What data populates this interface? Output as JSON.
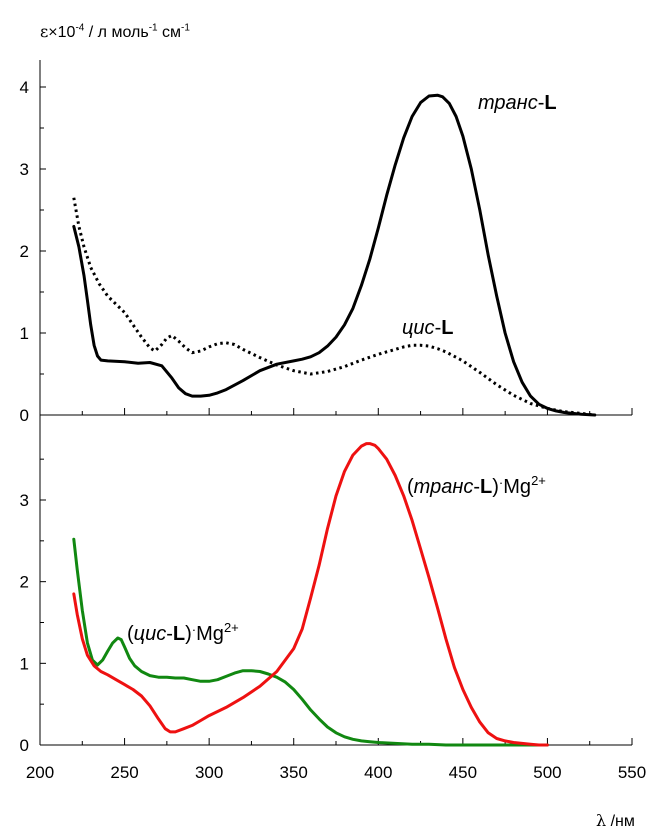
{
  "chart_data": [
    {
      "type": "line",
      "panel": "top",
      "ylim": [
        0,
        4.1
      ],
      "xlim": [
        200,
        550
      ],
      "yticks": [
        "0",
        "1",
        "2",
        "3",
        "4"
      ],
      "ylabel": "ε×10⁻⁴ / л моль⁻¹ см⁻¹",
      "grid": false,
      "series": [
        {
          "name": "транс-L",
          "name_prefix": "транс",
          "name_suffix": "-L",
          "color": "#000000",
          "style": "solid",
          "x": [
            220,
            223,
            226,
            228,
            230,
            232,
            234,
            236,
            240,
            250,
            258,
            265,
            272,
            278,
            282,
            286,
            290,
            295,
            300,
            305,
            310,
            320,
            330,
            340,
            350,
            355,
            360,
            365,
            370,
            375,
            380,
            385,
            390,
            395,
            400,
            405,
            410,
            415,
            420,
            425,
            430,
            435,
            438,
            442,
            446,
            450,
            455,
            460,
            465,
            470,
            475,
            480,
            485,
            490,
            495,
            500,
            505,
            510,
            515,
            520,
            528
          ],
          "values": [
            2.3,
            2.05,
            1.7,
            1.4,
            1.1,
            0.85,
            0.72,
            0.67,
            0.66,
            0.65,
            0.63,
            0.64,
            0.6,
            0.45,
            0.33,
            0.26,
            0.23,
            0.23,
            0.24,
            0.27,
            0.31,
            0.42,
            0.54,
            0.62,
            0.66,
            0.68,
            0.71,
            0.76,
            0.84,
            0.95,
            1.1,
            1.3,
            1.58,
            1.9,
            2.28,
            2.68,
            3.05,
            3.38,
            3.64,
            3.81,
            3.89,
            3.9,
            3.88,
            3.8,
            3.64,
            3.4,
            3.0,
            2.5,
            1.95,
            1.45,
            1.0,
            0.65,
            0.4,
            0.23,
            0.13,
            0.08,
            0.05,
            0.03,
            0.02,
            0.01,
            0.0
          ]
        },
        {
          "name": "цис-L",
          "name_prefix": "цис",
          "name_suffix": "-L",
          "color": "#000000",
          "style": "dotted",
          "x": [
            220,
            223,
            226,
            230,
            235,
            240,
            245,
            250,
            255,
            260,
            265,
            268,
            272,
            275,
            278,
            282,
            286,
            290,
            295,
            300,
            305,
            310,
            315,
            320,
            330,
            340,
            350,
            360,
            370,
            380,
            390,
            400,
            410,
            415,
            420,
            425,
            430,
            435,
            440,
            450,
            460,
            470,
            480,
            490,
            500,
            505,
            510,
            515,
            520,
            528
          ],
          "values": [
            2.65,
            2.3,
            2.05,
            1.8,
            1.6,
            1.45,
            1.35,
            1.25,
            1.1,
            0.95,
            0.82,
            0.78,
            0.86,
            0.94,
            0.97,
            0.9,
            0.82,
            0.76,
            0.78,
            0.83,
            0.87,
            0.88,
            0.86,
            0.8,
            0.7,
            0.61,
            0.54,
            0.5,
            0.53,
            0.59,
            0.67,
            0.74,
            0.8,
            0.83,
            0.85,
            0.85,
            0.84,
            0.81,
            0.77,
            0.66,
            0.52,
            0.37,
            0.24,
            0.14,
            0.08,
            0.06,
            0.04,
            0.03,
            0.02,
            0.0
          ]
        }
      ]
    },
    {
      "type": "line",
      "panel": "bottom",
      "ylim": [
        0,
        4.1
      ],
      "xlim": [
        200,
        550
      ],
      "yticks": [
        "0",
        "1",
        "2",
        "3"
      ],
      "xticks": [
        "200",
        "250",
        "300",
        "350",
        "400",
        "450",
        "500",
        "550"
      ],
      "xlabel": "λ /нм",
      "grid": false,
      "series": [
        {
          "name": "(транс-L)·Mg²⁺",
          "name_prefix": "транс",
          "name_suffix": "-L",
          "ion": "Mg",
          "charge": "2+",
          "color": "#ee1111",
          "style": "solid",
          "x": [
            220,
            222,
            225,
            228,
            232,
            236,
            240,
            245,
            250,
            255,
            260,
            265,
            270,
            274,
            277,
            280,
            285,
            290,
            295,
            300,
            310,
            320,
            330,
            340,
            350,
            355,
            360,
            365,
            370,
            375,
            380,
            385,
            390,
            393,
            395,
            398,
            400,
            405,
            410,
            415,
            420,
            425,
            430,
            435,
            440,
            445,
            450,
            455,
            460,
            465,
            470,
            475,
            480,
            485,
            490,
            495,
            500
          ],
          "values": [
            1.85,
            1.6,
            1.3,
            1.1,
            0.97,
            0.9,
            0.86,
            0.8,
            0.74,
            0.68,
            0.6,
            0.48,
            0.32,
            0.2,
            0.16,
            0.16,
            0.2,
            0.24,
            0.3,
            0.36,
            0.46,
            0.58,
            0.72,
            0.9,
            1.18,
            1.42,
            1.8,
            2.2,
            2.65,
            3.05,
            3.35,
            3.55,
            3.66,
            3.69,
            3.69,
            3.67,
            3.63,
            3.5,
            3.3,
            3.05,
            2.75,
            2.4,
            2.05,
            1.68,
            1.3,
            0.95,
            0.68,
            0.46,
            0.28,
            0.15,
            0.08,
            0.05,
            0.03,
            0.02,
            0.01,
            0.0,
            0.0
          ]
        },
        {
          "name": "(цис-L)·Mg²⁺",
          "name_prefix": "цис",
          "name_suffix": "-L",
          "ion": "Mg",
          "charge": "2+",
          "color": "#118811",
          "style": "solid",
          "x": [
            220,
            222,
            225,
            228,
            231,
            234,
            237,
            240,
            243,
            246,
            248,
            250,
            253,
            256,
            260,
            265,
            270,
            275,
            280,
            285,
            290,
            295,
            300,
            305,
            310,
            315,
            320,
            325,
            330,
            335,
            340,
            345,
            350,
            355,
            360,
            365,
            370,
            375,
            380,
            385,
            390,
            395,
            400,
            410,
            420,
            430,
            440,
            450,
            460,
            470,
            480,
            490,
            500
          ],
          "values": [
            2.52,
            2.15,
            1.65,
            1.25,
            1.04,
            0.98,
            1.04,
            1.15,
            1.25,
            1.31,
            1.29,
            1.2,
            1.06,
            0.97,
            0.9,
            0.85,
            0.83,
            0.83,
            0.82,
            0.82,
            0.8,
            0.78,
            0.78,
            0.8,
            0.84,
            0.88,
            0.91,
            0.91,
            0.9,
            0.87,
            0.83,
            0.77,
            0.68,
            0.56,
            0.43,
            0.32,
            0.22,
            0.15,
            0.1,
            0.07,
            0.05,
            0.04,
            0.03,
            0.02,
            0.01,
            0.01,
            0.0,
            0.0,
            0.0,
            0.0,
            0.0,
            0.0,
            0.0
          ]
        }
      ]
    }
  ]
}
